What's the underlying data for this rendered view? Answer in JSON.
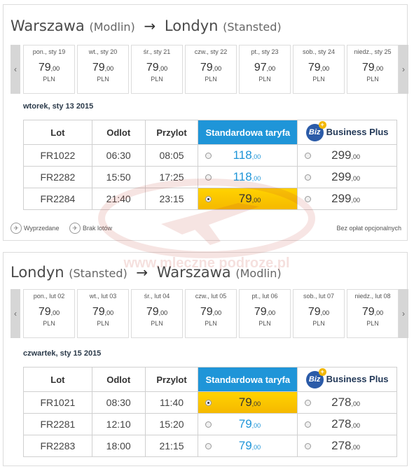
{
  "outbound": {
    "from": "Warszawa",
    "from_sub": "(Modlin)",
    "arrow": "→",
    "to": "Londyn",
    "to_sub": "(Stansted)",
    "days": [
      {
        "day": "pon., sty 19",
        "price": "79",
        "dec": ",00",
        "cur": "PLN"
      },
      {
        "day": "wt., sty 20",
        "price": "79",
        "dec": ",00",
        "cur": "PLN"
      },
      {
        "day": "śr., sty 21",
        "price": "79",
        "dec": ",00",
        "cur": "PLN"
      },
      {
        "day": "czw., sty 22",
        "price": "79",
        "dec": ",00",
        "cur": "PLN"
      },
      {
        "day": "pt., sty 23",
        "price": "97",
        "dec": ",00",
        "cur": "PLN"
      },
      {
        "day": "sob., sty 24",
        "price": "79",
        "dec": ",00",
        "cur": "PLN"
      },
      {
        "day": "niedz., sty 25",
        "price": "79",
        "dec": ",00",
        "cur": "PLN"
      }
    ],
    "date_label": "wtorek, sty 13 2015",
    "headers": {
      "lot": "Lot",
      "odlot": "Odlot",
      "przylot": "Przylot",
      "standard": "Standardowa taryfa",
      "biz_logo": "Biz",
      "business": "Business Plus"
    },
    "flights": [
      {
        "lot": "FR1022",
        "odlot": "06:30",
        "przylot": "08:05",
        "std": "118",
        "std_dec": ",00",
        "biz": "299",
        "biz_dec": ",00"
      },
      {
        "lot": "FR2282",
        "odlot": "15:50",
        "przylot": "17:25",
        "std": "118",
        "std_dec": ",00",
        "biz": "299",
        "biz_dec": ",00"
      },
      {
        "lot": "FR2284",
        "odlot": "21:40",
        "przylot": "23:15",
        "std": "79",
        "std_dec": ",00",
        "biz": "299",
        "biz_dec": ",00"
      }
    ]
  },
  "legend": {
    "sold_out": "Wyprzedane",
    "no_flights": "Brak lotów",
    "note": "Bez opłat opcjonalnych"
  },
  "inbound": {
    "from": "Londyn",
    "from_sub": "(Stansted)",
    "arrow": "→",
    "to": "Warszawa",
    "to_sub": "(Modlin)",
    "days": [
      {
        "day": "pon., lut 02",
        "price": "79",
        "dec": ",00",
        "cur": "PLN"
      },
      {
        "day": "wt., lut 03",
        "price": "79",
        "dec": ",00",
        "cur": "PLN"
      },
      {
        "day": "śr., lut 04",
        "price": "79",
        "dec": ",00",
        "cur": "PLN"
      },
      {
        "day": "czw., lut 05",
        "price": "79",
        "dec": ",00",
        "cur": "PLN"
      },
      {
        "day": "pt., lut 06",
        "price": "79",
        "dec": ",00",
        "cur": "PLN"
      },
      {
        "day": "sob., lut 07",
        "price": "79",
        "dec": ",00",
        "cur": "PLN"
      },
      {
        "day": "niedz., lut 08",
        "price": "79",
        "dec": ",00",
        "cur": "PLN"
      }
    ],
    "date_label": "czwartek, sty 15 2015",
    "headers": {
      "lot": "Lot",
      "odlot": "Odlot",
      "przylot": "Przylot",
      "standard": "Standardowa taryfa",
      "biz_logo": "Biz",
      "business": "Business Plus"
    },
    "flights": [
      {
        "lot": "FR1021",
        "odlot": "08:30",
        "przylot": "11:40",
        "std": "79",
        "std_dec": ",00",
        "biz": "278",
        "biz_dec": ",00"
      },
      {
        "lot": "FR2281",
        "odlot": "12:10",
        "przylot": "15:20",
        "std": "79",
        "std_dec": ",00",
        "biz": "278",
        "biz_dec": ",00"
      },
      {
        "lot": "FR2283",
        "odlot": "18:00",
        "przylot": "21:15",
        "std": "79",
        "std_dec": ",00",
        "biz": "278",
        "biz_dec": ",00"
      }
    ]
  },
  "watermark": "www.mleczne podroze.pl",
  "colors": {
    "accent": "#1f95d8",
    "selected": "#ffd200",
    "biz": "#2b5ba8"
  }
}
